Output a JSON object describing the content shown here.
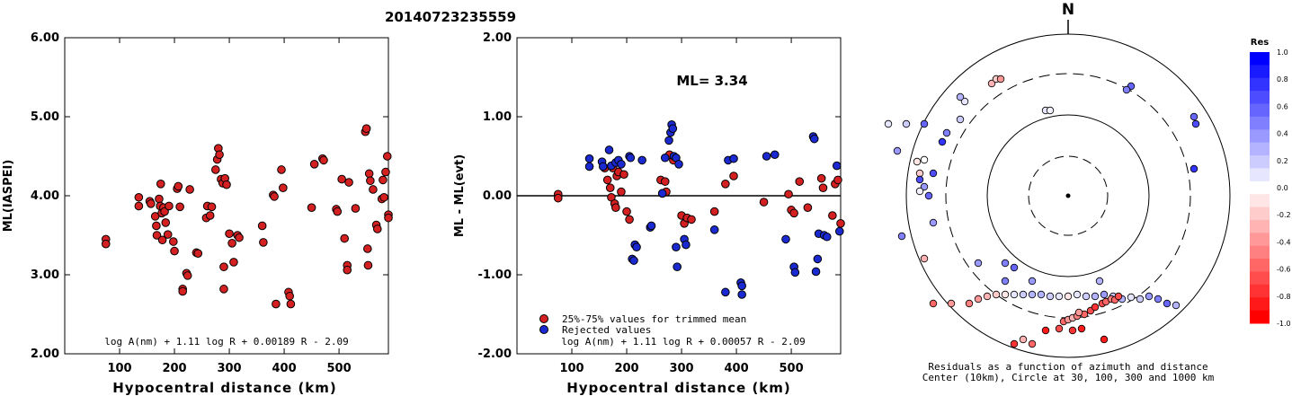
{
  "title": "20140723235559",
  "chart_data": [
    {
      "type": "scatter",
      "xlabel": "Hypocentral distance (km)",
      "ylabel": "ML(IASPEI)",
      "xlim": [
        0,
        590
      ],
      "ylim": [
        2.0,
        6.0
      ],
      "xticks": [
        "100",
        "200",
        "300",
        "400",
        "500"
      ],
      "xtick_values": [
        100,
        200,
        300,
        400,
        500
      ],
      "yticks": [
        "2.00",
        "3.00",
        "4.00",
        "5.00",
        "6.00"
      ],
      "ytick_values": [
        2,
        3,
        4,
        5,
        6
      ],
      "formula": "log A(nm) + 1.11 log R + 0.00189 R - 2.09",
      "marker_color": "#d42020",
      "points": [
        [
          75,
          3.45
        ],
        [
          75,
          3.39
        ],
        [
          135,
          3.98
        ],
        [
          135,
          3.87
        ],
        [
          155,
          3.93
        ],
        [
          157,
          3.9
        ],
        [
          165,
          3.74
        ],
        [
          167,
          3.62
        ],
        [
          168,
          3.5
        ],
        [
          172,
          3.96
        ],
        [
          174,
          3.87
        ],
        [
          175,
          4.15
        ],
        [
          177,
          3.78
        ],
        [
          178,
          3.44
        ],
        [
          180,
          3.85
        ],
        [
          182,
          3.8
        ],
        [
          184,
          3.66
        ],
        [
          188,
          3.51
        ],
        [
          190,
          3.87
        ],
        [
          198,
          3.42
        ],
        [
          200,
          3.3
        ],
        [
          205,
          4.09
        ],
        [
          207,
          4.12
        ],
        [
          210,
          3.86
        ],
        [
          215,
          2.82
        ],
        [
          215,
          2.79
        ],
        [
          222,
          3.02
        ],
        [
          224,
          2.99
        ],
        [
          228,
          4.08
        ],
        [
          240,
          3.28
        ],
        [
          243,
          3.27
        ],
        [
          258,
          3.72
        ],
        [
          260,
          3.87
        ],
        [
          265,
          3.75
        ],
        [
          268,
          3.86
        ],
        [
          275,
          4.33
        ],
        [
          278,
          4.46
        ],
        [
          280,
          4.6
        ],
        [
          282,
          4.52
        ],
        [
          285,
          4.21
        ],
        [
          288,
          4.16
        ],
        [
          290,
          3.1
        ],
        [
          290,
          2.82
        ],
        [
          292,
          4.22
        ],
        [
          295,
          4.14
        ],
        [
          300,
          3.52
        ],
        [
          305,
          3.4
        ],
        [
          308,
          3.16
        ],
        [
          315,
          3.5
        ],
        [
          318,
          3.47
        ],
        [
          360,
          3.62
        ],
        [
          362,
          3.41
        ],
        [
          380,
          4.01
        ],
        [
          382,
          3.99
        ],
        [
          385,
          2.63
        ],
        [
          395,
          4.33
        ],
        [
          398,
          4.1
        ],
        [
          408,
          2.78
        ],
        [
          410,
          2.73
        ],
        [
          412,
          2.63
        ],
        [
          450,
          3.85
        ],
        [
          455,
          4.4
        ],
        [
          470,
          4.47
        ],
        [
          472,
          4.45
        ],
        [
          495,
          3.83
        ],
        [
          497,
          3.8
        ],
        [
          505,
          4.21
        ],
        [
          510,
          3.46
        ],
        [
          515,
          3.12
        ],
        [
          515,
          3.06
        ],
        [
          518,
          4.17
        ],
        [
          530,
          3.84
        ],
        [
          548,
          4.81
        ],
        [
          550,
          4.85
        ],
        [
          552,
          3.33
        ],
        [
          553,
          3.12
        ],
        [
          555,
          4.28
        ],
        [
          557,
          4.19
        ],
        [
          562,
          4.08
        ],
        [
          568,
          3.63
        ],
        [
          570,
          3.58
        ],
        [
          578,
          3.96
        ],
        [
          580,
          4.2
        ],
        [
          582,
          3.98
        ],
        [
          585,
          4.3
        ],
        [
          588,
          4.5
        ],
        [
          590,
          3.76
        ],
        [
          590,
          3.72
        ]
      ]
    },
    {
      "type": "scatter",
      "xlabel": "Hypocentral distance (km)",
      "ylabel": "ML - ML(evt)",
      "xlim": [
        0,
        590
      ],
      "ylim": [
        -2.0,
        2.0
      ],
      "xticks": [
        "100",
        "200",
        "300",
        "400",
        "500"
      ],
      "xtick_values": [
        100,
        200,
        300,
        400,
        500
      ],
      "yticks": [
        "-2.00",
        "-1.00",
        "0.00",
        "1.00",
        "2.00"
      ],
      "ytick_values": [
        -2,
        -1,
        0,
        1,
        2
      ],
      "annotation": "ML= 3.34",
      "formula": "log A(nm) + 1.11 log R + 0.00057 R - 2.09",
      "legend": {
        "placement": "bottom-left",
        "entries": [
          {
            "label": "25%-75% values for trimmed mean",
            "color": "#d42020"
          },
          {
            "label": "Rejected values",
            "color": "#1a2ad0"
          }
        ]
      },
      "series": [
        {
          "color": "#d42020",
          "points": [
            [
              75,
              0.02
            ],
            [
              75,
              -0.03
            ],
            [
              160,
              0.35
            ],
            [
              165,
              0.2
            ],
            [
              170,
              0.1
            ],
            [
              172,
              -0.02
            ],
            [
              175,
              0.35
            ],
            [
              178,
              -0.1
            ],
            [
              180,
              -0.15
            ],
            [
              182,
              0.25
            ],
            [
              185,
              0.3
            ],
            [
              190,
              0.05
            ],
            [
              195,
              0.27
            ],
            [
              200,
              -0.2
            ],
            [
              205,
              -0.3
            ],
            [
              262,
              0.2
            ],
            [
              265,
              0.03
            ],
            [
              270,
              0.18
            ],
            [
              272,
              0.05
            ],
            [
              278,
              0.52
            ],
            [
              285,
              0.45
            ],
            [
              300,
              -0.25
            ],
            [
              305,
              -0.35
            ],
            [
              310,
              -0.28
            ],
            [
              318,
              -0.3
            ],
            [
              360,
              -0.2
            ],
            [
              380,
              0.15
            ],
            [
              395,
              0.25
            ],
            [
              450,
              -0.08
            ],
            [
              495,
              0.02
            ],
            [
              500,
              -0.18
            ],
            [
              505,
              -0.22
            ],
            [
              515,
              0.18
            ],
            [
              530,
              -0.15
            ],
            [
              555,
              0.22
            ],
            [
              558,
              0.1
            ],
            [
              575,
              -0.25
            ],
            [
              580,
              0.15
            ],
            [
              585,
              0.2
            ],
            [
              590,
              -0.35
            ]
          ]
        },
        {
          "color": "#1a2ad0",
          "points": [
            [
              132,
              0.47
            ],
            [
              132,
              0.37
            ],
            [
              155,
              0.43
            ],
            [
              157,
              0.37
            ],
            [
              168,
              0.58
            ],
            [
              172,
              0.38
            ],
            [
              180,
              0.42
            ],
            [
              185,
              0.45
            ],
            [
              190,
              0.4
            ],
            [
              205,
              0.5
            ],
            [
              207,
              0.48
            ],
            [
              210,
              -0.8
            ],
            [
              213,
              -0.82
            ],
            [
              215,
              -0.62
            ],
            [
              218,
              -0.65
            ],
            [
              228,
              0.45
            ],
            [
              243,
              -0.4
            ],
            [
              245,
              -0.38
            ],
            [
              265,
              0.03
            ],
            [
              270,
              0.48
            ],
            [
              277,
              0.7
            ],
            [
              280,
              0.8
            ],
            [
              282,
              0.9
            ],
            [
              284,
              0.85
            ],
            [
              286,
              0.5
            ],
            [
              290,
              0.48
            ],
            [
              290,
              -0.65
            ],
            [
              292,
              -0.9
            ],
            [
              295,
              0.4
            ],
            [
              305,
              -0.55
            ],
            [
              308,
              -0.62
            ],
            [
              360,
              -0.43
            ],
            [
              380,
              -1.22
            ],
            [
              385,
              0.45
            ],
            [
              395,
              0.47
            ],
            [
              408,
              -1.1
            ],
            [
              410,
              -1.14
            ],
            [
              410,
              -1.25
            ],
            [
              455,
              0.5
            ],
            [
              470,
              0.52
            ],
            [
              490,
              -0.55
            ],
            [
              505,
              -0.9
            ],
            [
              507,
              -0.97
            ],
            [
              540,
              0.75
            ],
            [
              542,
              0.72
            ],
            [
              545,
              -0.96
            ],
            [
              548,
              -0.8
            ],
            [
              550,
              -0.48
            ],
            [
              560,
              -0.5
            ],
            [
              565,
              -0.52
            ],
            [
              583,
              0.38
            ],
            [
              588,
              -0.45
            ]
          ]
        }
      ]
    },
    {
      "type": "scatter",
      "subtype": "polar",
      "north_label": "N",
      "caption_line1": "Residuals as a function of azimuth and distance",
      "caption_line2": "Center (10km), Circle at 30, 100, 300 and 1000 km",
      "colorbar": {
        "title": "Res",
        "ticks": [
          "1.0",
          "0.8",
          "0.6",
          "0.4",
          "0.2",
          "0.0",
          "-0.2",
          "-0.4",
          "-0.6",
          "-0.8",
          "-1.0"
        ],
        "tick_values": [
          1.0,
          0.8,
          0.6,
          0.4,
          0.2,
          0.0,
          -0.2,
          -0.4,
          -0.6,
          -0.8,
          -1.0
        ]
      },
      "points": [
        [
          -150,
          120,
          -0.6
        ],
        [
          -130,
          120,
          -0.4
        ],
        [
          -110,
          120,
          -0.5
        ],
        [
          -100,
          115,
          -0.4
        ],
        [
          -90,
          112,
          -0.3
        ],
        [
          -80,
          110,
          -0.2
        ],
        [
          -70,
          110,
          -0.1
        ],
        [
          -60,
          110,
          0.1
        ],
        [
          -50,
          110,
          0.2
        ],
        [
          -40,
          110,
          0.3
        ],
        [
          -30,
          110,
          0.3
        ],
        [
          -20,
          112,
          0.2
        ],
        [
          -10,
          112,
          0.1
        ],
        [
          0,
          112,
          -0.1
        ],
        [
          10,
          110,
          0.1
        ],
        [
          20,
          112,
          0.2
        ],
        [
          30,
          112,
          0.3
        ],
        [
          40,
          110,
          0.4
        ],
        [
          50,
          112,
          0.2
        ],
        [
          60,
          115,
          0.3
        ],
        [
          70,
          113,
          0.1
        ],
        [
          80,
          115,
          0.2
        ],
        [
          90,
          112,
          0.4
        ],
        [
          100,
          115,
          0.5
        ],
        [
          110,
          120,
          0.6
        ],
        [
          120,
          122,
          0.3
        ],
        [
          35,
          95,
          0.3
        ],
        [
          -40,
          95,
          0.4
        ],
        [
          -70,
          95,
          0.5
        ],
        [
          -25,
          150,
          -0.9
        ],
        [
          -10,
          148,
          -0.7
        ],
        [
          5,
          150,
          -0.8
        ],
        [
          15,
          148,
          -0.9
        ],
        [
          -5,
          140,
          -0.6
        ],
        [
          0,
          138,
          -0.4
        ],
        [
          5,
          136,
          -0.3
        ],
        [
          10,
          134,
          -0.5
        ],
        [
          18,
          132,
          -0.6
        ],
        [
          25,
          128,
          -0.7
        ],
        [
          30,
          124,
          -0.8
        ],
        [
          38,
          120,
          -0.7
        ],
        [
          42,
          118,
          -0.6
        ],
        [
          48,
          115,
          -0.5
        ],
        [
          52,
          116,
          -0.6
        ],
        [
          56,
          112,
          -0.7
        ],
        [
          12,
          130,
          -0.4
        ],
        [
          -50,
          160,
          -0.3
        ],
        [
          -40,
          165,
          -0.6
        ],
        [
          -60,
          165,
          -0.8
        ],
        [
          40,
          160,
          -0.9
        ],
        [
          -70,
          75,
          0.5
        ],
        [
          -60,
          80,
          0.6
        ],
        [
          -100,
          75,
          0.4
        ],
        [
          -155,
          0,
          0.6
        ],
        [
          -160,
          -10,
          0.4
        ],
        [
          -150,
          30,
          0.4
        ],
        [
          -150,
          -25,
          0.7
        ],
        [
          -140,
          -60,
          0.8
        ],
        [
          -135,
          -70,
          0.5
        ],
        [
          -120,
          -85,
          0.2
        ],
        [
          -115,
          -105,
          0.1
        ],
        [
          -120,
          -110,
          0.3
        ],
        [
          -85,
          -125,
          -0.3
        ],
        [
          -80,
          -130,
          -0.2
        ],
        [
          -75,
          -130,
          -0.4
        ],
        [
          -160,
          -80,
          0.6
        ],
        [
          -168,
          -38,
          -0.1
        ],
        [
          -165,
          -5,
          0.05
        ],
        [
          -165,
          -25,
          -0.2
        ],
        [
          -180,
          -80,
          0.2
        ],
        [
          -200,
          -80,
          0.1
        ],
        [
          -190,
          -50,
          0.4
        ],
        [
          -160,
          70,
          -0.3
        ],
        [
          -185,
          45,
          0.5
        ],
        [
          70,
          -122,
          0.6
        ],
        [
          65,
          -118,
          0.5
        ],
        [
          140,
          -88,
          0.6
        ],
        [
          142,
          -80,
          0.7
        ],
        [
          140,
          -30,
          0.8
        ],
        [
          -25,
          -95,
          0.1
        ],
        [
          -20,
          -95,
          0.05
        ],
        [
          -160,
          -40,
          0.0
        ],
        [
          -165,
          -18,
          0.7
        ]
      ]
    }
  ]
}
